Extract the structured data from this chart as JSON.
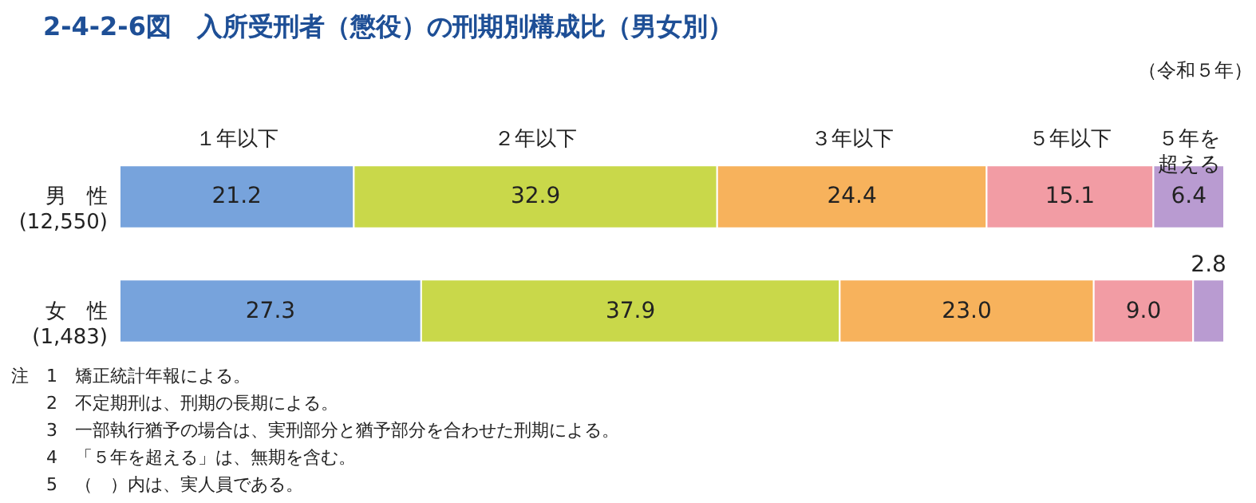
{
  "chart_data": {
    "type": "bar",
    "orientation": "horizontal",
    "stacked": true,
    "title": "2-4-2-6図　入所受刑者（懲役）の刑期別構成比（男女別）",
    "subtitle": "（令和５年）",
    "categories": [
      "男　性\n(12,550)",
      "女　性\n(1,483)"
    ],
    "xlim": [
      0,
      100
    ],
    "series": [
      {
        "name": "１年以下",
        "color": "#77a3dc",
        "values": [
          21.2,
          27.3
        ],
        "value_labels": [
          "21.2",
          "27.3"
        ]
      },
      {
        "name": "２年以下",
        "color": "#c9d84a",
        "values": [
          32.9,
          37.9
        ],
        "value_labels": [
          "32.9",
          "37.9"
        ]
      },
      {
        "name": "３年以下",
        "color": "#f7b25c",
        "values": [
          24.4,
          23.0
        ],
        "value_labels": [
          "24.4",
          "23.0"
        ]
      },
      {
        "name": "５年以下",
        "color": "#f29ca4",
        "values": [
          15.1,
          9.0
        ],
        "value_labels": [
          "15.1",
          "9.0"
        ]
      },
      {
        "name": "５年を超える",
        "color": "#b99bd1",
        "values": [
          6.4,
          2.8
        ],
        "value_labels": [
          "6.4",
          "2.8"
        ]
      }
    ],
    "annotations": [
      "注　1　矯正統計年報による。",
      "2　不定期刑は、刑期の長期による。",
      "3　一部執行猶予の場合は、実刑部分と猶予部分を合わせた刑期による。",
      "4　「５年を超える」は、無期を含む。",
      "5　（　）内は、実人員である。"
    ]
  }
}
